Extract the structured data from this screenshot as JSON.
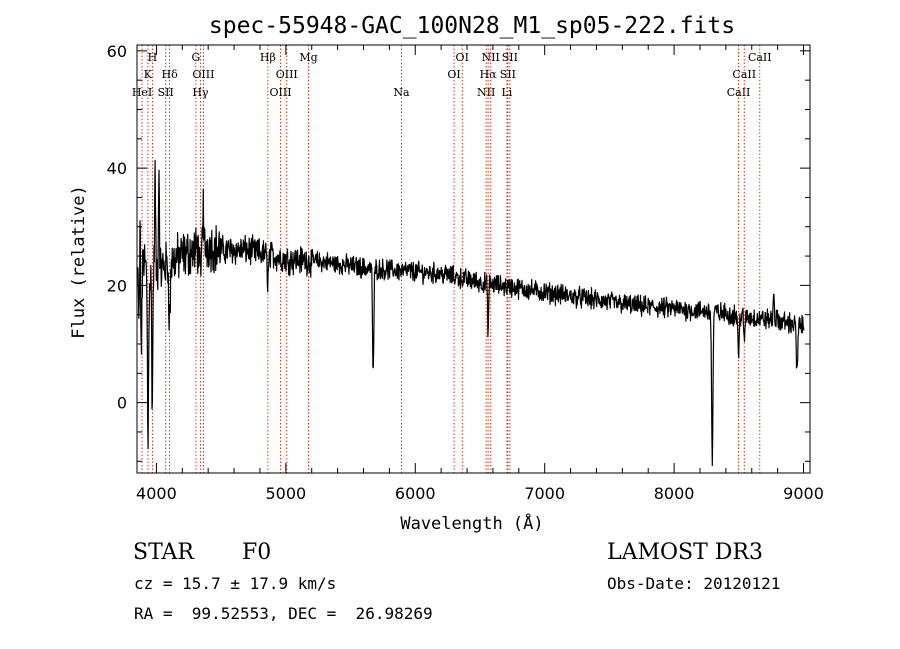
{
  "chart_data": {
    "type": "line",
    "title": "spec-55948-GAC_100N28_M1_sp05-222.fits",
    "xlabel": "Wavelength (Å)",
    "ylabel": "Flux (relative)",
    "xlim": [
      3850,
      9050
    ],
    "ylim": [
      -12,
      61
    ],
    "x_ticks": [
      {
        "value": 4000,
        "label": "4000"
      },
      {
        "value": 5000,
        "label": "5000"
      },
      {
        "value": 6000,
        "label": "6000"
      },
      {
        "value": 7000,
        "label": "7000"
      },
      {
        "value": 8000,
        "label": "8000"
      },
      {
        "value": 9000,
        "label": "9000"
      }
    ],
    "y_ticks": [
      {
        "value": 0,
        "label": "0"
      },
      {
        "value": 20,
        "label": "20"
      },
      {
        "value": 40,
        "label": "40"
      },
      {
        "value": 60,
        "label": "60"
      }
    ],
    "line_color": "#000000",
    "marker_color": "#cc2200",
    "spectrum_anchors": [
      [
        3850,
        27
      ],
      [
        3870,
        10
      ],
      [
        3900,
        25
      ],
      [
        3940,
        20
      ],
      [
        3970,
        24
      ],
      [
        4000,
        22
      ],
      [
        4100,
        24
      ],
      [
        4200,
        25
      ],
      [
        4300,
        26
      ],
      [
        4400,
        27
      ],
      [
        4500,
        26
      ],
      [
        4700,
        26
      ],
      [
        4900,
        25
      ],
      [
        5000,
        24.5
      ],
      [
        5300,
        24
      ],
      [
        5600,
        23
      ],
      [
        5900,
        22.5
      ],
      [
        6200,
        22
      ],
      [
        6500,
        20.5
      ],
      [
        6800,
        19.5
      ],
      [
        7100,
        18.5
      ],
      [
        7400,
        17.5
      ],
      [
        7700,
        16.5
      ],
      [
        8000,
        16
      ],
      [
        8300,
        15.5
      ],
      [
        8600,
        14.5
      ],
      [
        8800,
        14
      ],
      [
        9000,
        13
      ]
    ],
    "absorption_features": [
      {
        "x": 3880,
        "depth": 14,
        "width": 6
      },
      {
        "x": 3935,
        "depth": 28,
        "width": 6
      },
      {
        "x": 3968,
        "depth": 24,
        "width": 6
      },
      {
        "x": 4102,
        "depth": 10,
        "width": 8
      },
      {
        "x": 4340,
        "depth": 6,
        "width": 8
      },
      {
        "x": 4861,
        "depth": 4,
        "width": 8
      },
      {
        "x": 5675,
        "depth": 18,
        "width": 7
      },
      {
        "x": 6563,
        "depth": 8,
        "width": 6
      },
      {
        "x": 8295,
        "depth": 26,
        "width": 7
      },
      {
        "x": 8498,
        "depth": 8,
        "width": 6
      },
      {
        "x": 8542,
        "depth": 5,
        "width": 5
      },
      {
        "x": 8950,
        "depth": 8,
        "width": 8
      }
    ],
    "emission_features": [
      {
        "x": 3875,
        "height": 26,
        "width": 5
      },
      {
        "x": 3990,
        "height": 16,
        "width": 5
      },
      {
        "x": 4020,
        "height": 18,
        "width": 5
      },
      {
        "x": 4360,
        "height": 8,
        "width": 5
      },
      {
        "x": 8770,
        "height": 5,
        "width": 6
      }
    ],
    "noise_amplitude": 1.4,
    "line_markers": [
      {
        "x": 3934,
        "label": "K",
        "row": 2
      },
      {
        "x": 3969,
        "label": "H",
        "row": 1
      },
      {
        "x": 3889,
        "label": "HeI",
        "row": 3
      },
      {
        "x": 4072,
        "label": "SII",
        "row": 3
      },
      {
        "x": 4102,
        "label": "Hδ",
        "row": 2
      },
      {
        "x": 4305,
        "label": "G",
        "row": 1
      },
      {
        "x": 4340,
        "label": "Hγ",
        "row": 3
      },
      {
        "x": 4363,
        "label": "OIII",
        "row": 2
      },
      {
        "x": 4861,
        "label": "Hβ",
        "row": 1
      },
      {
        "x": 4959,
        "label": "OIII",
        "row": 3
      },
      {
        "x": 5007,
        "label": "OIII",
        "row": 2
      },
      {
        "x": 5175,
        "label": "Mg",
        "row": 1
      },
      {
        "x": 5893,
        "label": "Na",
        "row": 3
      },
      {
        "x": 6300,
        "label": "OI",
        "row": 2
      },
      {
        "x": 6363,
        "label": "OI",
        "row": 1
      },
      {
        "x": 6548,
        "label": "NII",
        "row": 3
      },
      {
        "x": 6563,
        "label": "Hα",
        "row": 2
      },
      {
        "x": 6583,
        "label": "NII",
        "row": 1
      },
      {
        "x": 6708,
        "label": "Li",
        "row": 3
      },
      {
        "x": 6716,
        "label": "SII",
        "row": 2
      },
      {
        "x": 6731,
        "label": "SII",
        "row": 1
      },
      {
        "x": 8498,
        "label": "CaII",
        "row": 3
      },
      {
        "x": 8542,
        "label": "CaII",
        "row": 2
      },
      {
        "x": 8662,
        "label": "CaII",
        "row": 1
      }
    ]
  },
  "footer": {
    "object_class": "STAR",
    "subclass": "F0",
    "survey": "LAMOST DR3",
    "redshift": "cz = 15.7 ± 17.9 km/s",
    "obs_date": "Obs-Date: 20120121",
    "coords": "RA =  99.52553, DEC =  26.98269"
  }
}
